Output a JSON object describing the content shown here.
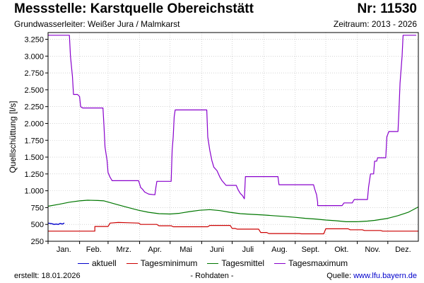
{
  "header": {
    "title": "Messstelle: Karstquelle Obereichstätt",
    "nr": "Nr: 11530",
    "aquifer": "Grundwasserleiter:  Weißer Jura / Malmkarst",
    "period": "Zeitraum: 2013 - 2026"
  },
  "footer": {
    "created": "erstellt:  18.01.2026",
    "raw": "- Rohdaten -",
    "source_label": "Quelle: ",
    "source_link": "www.lfu.bayern.de"
  },
  "chart_data": {
    "type": "line",
    "ylabel": "Quellschüttung [l/s]",
    "ylim": [
      250,
      3350
    ],
    "yticks": [
      250,
      500,
      750,
      1000,
      1250,
      1500,
      1750,
      2000,
      2250,
      2500,
      2750,
      3000,
      3250
    ],
    "ytick_labels": [
      "250",
      "500",
      "750",
      "1.000",
      "1.250",
      "1.500",
      "1.750",
      "2.000",
      "2.250",
      "2.500",
      "2.750",
      "3.000",
      "3.250"
    ],
    "xlim": [
      1,
      365
    ],
    "month_starts": [
      1,
      32,
      60,
      91,
      121,
      152,
      182,
      213,
      244,
      274,
      305,
      335
    ],
    "month_labels": [
      "Jan.",
      "Feb.",
      "Mrz.",
      "Apr.",
      "Mai",
      "Juni",
      "Juli",
      "Aug.",
      "Sept.",
      "Okt.",
      "Nov.",
      "Dez."
    ],
    "grid": true,
    "series": [
      {
        "name": "aktuell",
        "color": "#0000cc",
        "points": [
          [
            1,
            520
          ],
          [
            3,
            515
          ],
          [
            5,
            510
          ],
          [
            7,
            500
          ],
          [
            9,
            505
          ],
          [
            11,
            500
          ],
          [
            13,
            515
          ],
          [
            15,
            505
          ],
          [
            17,
            520
          ]
        ]
      },
      {
        "name": "Tagesminimum",
        "color": "#cc0000",
        "points": [
          [
            1,
            400
          ],
          [
            47,
            400
          ],
          [
            47,
            470
          ],
          [
            60,
            470
          ],
          [
            62,
            520
          ],
          [
            70,
            530
          ],
          [
            80,
            525
          ],
          [
            90,
            520
          ],
          [
            92,
            500
          ],
          [
            108,
            500
          ],
          [
            110,
            480
          ],
          [
            122,
            480
          ],
          [
            124,
            465
          ],
          [
            158,
            465
          ],
          [
            160,
            485
          ],
          [
            180,
            485
          ],
          [
            182,
            440
          ],
          [
            185,
            440
          ],
          [
            187,
            430
          ],
          [
            208,
            430
          ],
          [
            210,
            380
          ],
          [
            216,
            380
          ],
          [
            218,
            365
          ],
          [
            248,
            365
          ],
          [
            250,
            360
          ],
          [
            272,
            360
          ],
          [
            274,
            435
          ],
          [
            296,
            435
          ],
          [
            298,
            420
          ],
          [
            310,
            420
          ],
          [
            312,
            410
          ],
          [
            328,
            410
          ],
          [
            330,
            400
          ],
          [
            365,
            400
          ]
        ]
      },
      {
        "name": "Tagesmittel",
        "color": "#007700",
        "points": [
          [
            1,
            770
          ],
          [
            12,
            800
          ],
          [
            22,
            830
          ],
          [
            32,
            850
          ],
          [
            40,
            860
          ],
          [
            50,
            855
          ],
          [
            56,
            850
          ],
          [
            70,
            790
          ],
          [
            80,
            750
          ],
          [
            90,
            710
          ],
          [
            100,
            680
          ],
          [
            110,
            660
          ],
          [
            121,
            655
          ],
          [
            130,
            665
          ],
          [
            140,
            690
          ],
          [
            150,
            710
          ],
          [
            160,
            720
          ],
          [
            170,
            705
          ],
          [
            180,
            680
          ],
          [
            190,
            660
          ],
          [
            200,
            650
          ],
          [
            213,
            640
          ],
          [
            222,
            630
          ],
          [
            232,
            620
          ],
          [
            244,
            605
          ],
          [
            254,
            590
          ],
          [
            264,
            580
          ],
          [
            274,
            565
          ],
          [
            284,
            555
          ],
          [
            294,
            540
          ],
          [
            305,
            540
          ],
          [
            315,
            550
          ],
          [
            322,
            560
          ],
          [
            335,
            590
          ],
          [
            345,
            630
          ],
          [
            355,
            680
          ],
          [
            365,
            760
          ]
        ]
      },
      {
        "name": "Tagesmaximum",
        "color": "#8800cc",
        "points": [
          [
            1,
            3310
          ],
          [
            22,
            3310
          ],
          [
            23,
            3000
          ],
          [
            25,
            2700
          ],
          [
            26,
            2430
          ],
          [
            30,
            2430
          ],
          [
            32,
            2400
          ],
          [
            33,
            2250
          ],
          [
            35,
            2230
          ],
          [
            55,
            2230
          ],
          [
            56,
            1950
          ],
          [
            57,
            1650
          ],
          [
            59,
            1450
          ],
          [
            60,
            1270
          ],
          [
            62,
            1200
          ],
          [
            64,
            1150
          ],
          [
            90,
            1150
          ],
          [
            91,
            1100
          ],
          [
            92,
            1050
          ],
          [
            94,
            1020
          ],
          [
            96,
            980
          ],
          [
            100,
            950
          ],
          [
            106,
            940
          ],
          [
            107,
            1050
          ],
          [
            108,
            1140
          ],
          [
            120,
            1140
          ],
          [
            122,
            1140
          ],
          [
            123,
            1600
          ],
          [
            124,
            1800
          ],
          [
            125,
            2100
          ],
          [
            126,
            2200
          ],
          [
            157,
            2200
          ],
          [
            158,
            1800
          ],
          [
            160,
            1600
          ],
          [
            162,
            1450
          ],
          [
            164,
            1350
          ],
          [
            167,
            1300
          ],
          [
            170,
            1200
          ],
          [
            172,
            1150
          ],
          [
            176,
            1080
          ],
          [
            186,
            1080
          ],
          [
            188,
            1010
          ],
          [
            190,
            960
          ],
          [
            192,
            930
          ],
          [
            194,
            880
          ],
          [
            195,
            1210
          ],
          [
            227,
            1210
          ],
          [
            228,
            1090
          ],
          [
            255,
            1090
          ],
          [
            262,
            1090
          ],
          [
            263,
            1030
          ],
          [
            265,
            940
          ],
          [
            266,
            830
          ],
          [
            266,
            780
          ],
          [
            290,
            780
          ],
          [
            292,
            820
          ],
          [
            300,
            820
          ],
          [
            302,
            870
          ],
          [
            315,
            870
          ],
          [
            316,
            1050
          ],
          [
            318,
            1250
          ],
          [
            321,
            1250
          ],
          [
            322,
            1440
          ],
          [
            324,
            1440
          ],
          [
            325,
            1490
          ],
          [
            333,
            1490
          ],
          [
            334,
            1800
          ],
          [
            335,
            1840
          ],
          [
            336,
            1880
          ],
          [
            345,
            1880
          ],
          [
            346,
            2200
          ],
          [
            347,
            2600
          ],
          [
            349,
            3000
          ],
          [
            350,
            3310
          ],
          [
            361,
            3310
          ],
          [
            363,
            3310
          ]
        ]
      }
    ]
  }
}
